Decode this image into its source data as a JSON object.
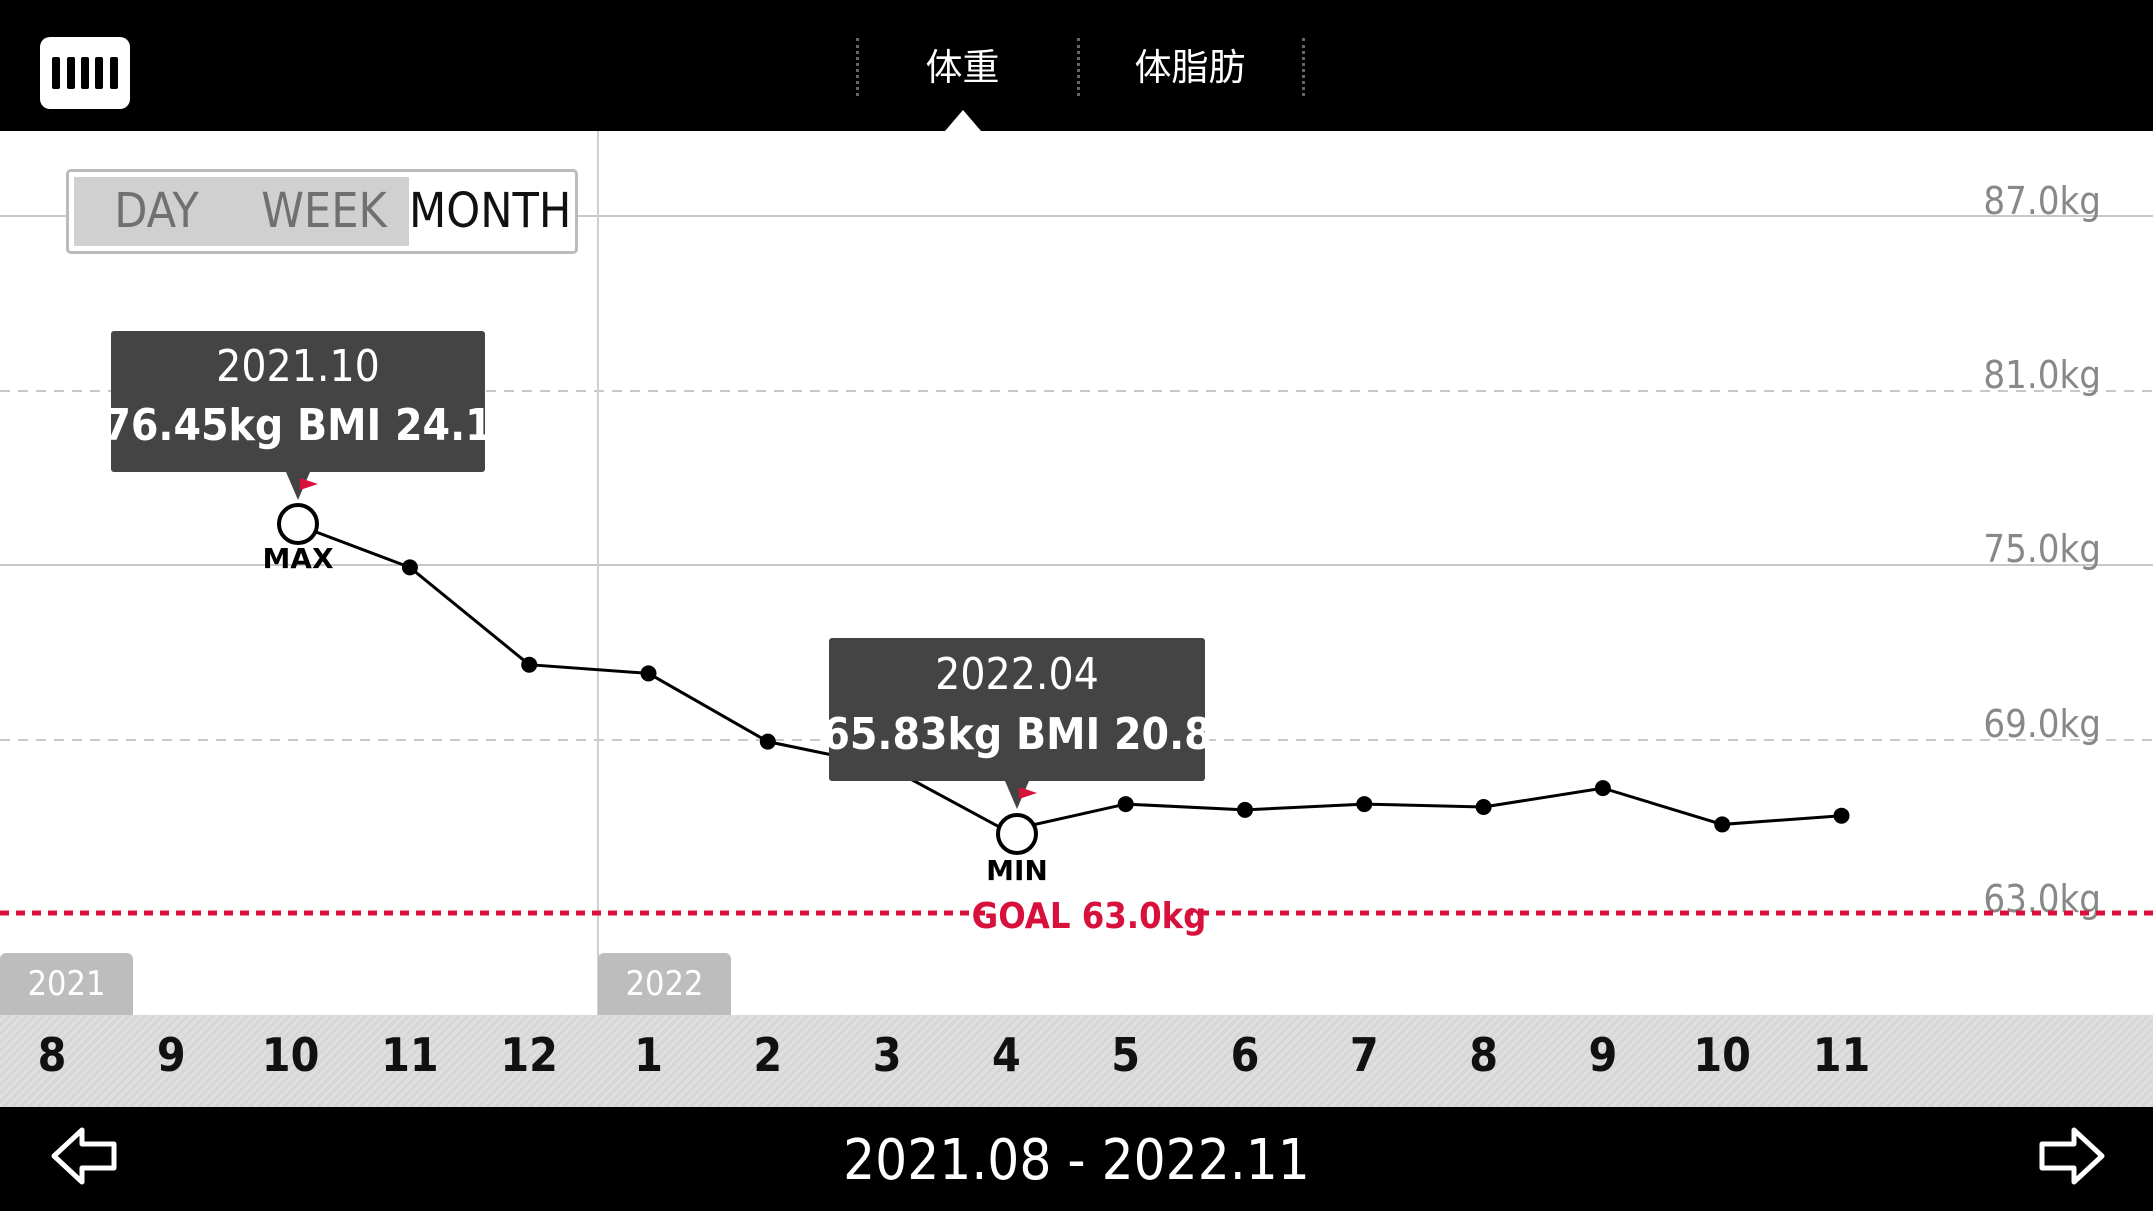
{
  "tabs": [
    {
      "label": "体重"
    },
    {
      "label": "体脂肪"
    }
  ],
  "active_tab": "体重",
  "period_toggle": {
    "options": [
      "DAY",
      "WEEK",
      "MONTH"
    ],
    "selected": "MONTH"
  },
  "years": [
    "2021",
    "2022"
  ],
  "date_range": "2021.08 - 2022.11",
  "goal": {
    "label": "GOAL 63.0kg",
    "value": 63.0
  },
  "max_callout": {
    "line1": "2021.10",
    "line2": "76.45kg  BMI 24.1",
    "marker": "MAX"
  },
  "min_callout": {
    "line1": "2022.04",
    "line2": "65.83kg  BMI 20.8",
    "marker": "MIN"
  },
  "colors": {
    "accent": "#d7103c",
    "line": "#000000",
    "callout_bg": "#444444",
    "bar": "#000000"
  },
  "icons": {
    "logo": "scale-logo-icon",
    "prev": "arrow-left-icon",
    "next": "arrow-right-icon"
  },
  "chart_data": {
    "type": "line",
    "x": [
      "8",
      "9",
      "10",
      "11",
      "12",
      "1",
      "2",
      "3",
      "4",
      "5",
      "6",
      "7",
      "8",
      "9",
      "10",
      "11"
    ],
    "values": [
      null,
      null,
      76.45,
      74.9,
      71.55,
      71.25,
      68.9,
      68.05,
      65.83,
      66.75,
      66.55,
      66.75,
      66.65,
      67.3,
      66.05,
      66.35
    ],
    "y_ticks": [
      "87.0kg",
      "81.0kg",
      "75.0kg",
      "69.0kg",
      "63.0kg"
    ],
    "ylim": [
      63.0,
      87.0
    ],
    "xlabel": "",
    "ylabel": "",
    "grid": true
  }
}
